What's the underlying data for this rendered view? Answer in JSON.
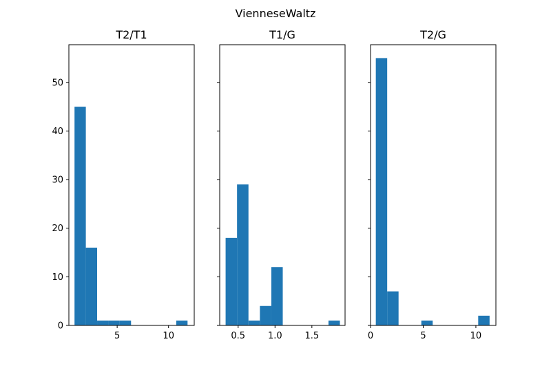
{
  "figure": {
    "suptitle": "VienneseWaltz"
  },
  "colors": {
    "bar": "#1f77b4"
  },
  "chart_data": [
    {
      "type": "bar",
      "title": "T2/T1",
      "xlim": [
        0.3,
        12.5
      ],
      "ylim": [
        0,
        57.75
      ],
      "xticks": [
        {
          "value": 5,
          "label": "5"
        },
        {
          "value": 10,
          "label": "10"
        }
      ],
      "yticks": [
        {
          "value": 0,
          "label": "0"
        },
        {
          "value": 10,
          "label": "10"
        },
        {
          "value": 20,
          "label": "20"
        },
        {
          "value": 30,
          "label": "30"
        },
        {
          "value": 40,
          "label": "40"
        },
        {
          "value": 50,
          "label": "50"
        }
      ],
      "bin_edges": [
        0.85,
        1.95,
        3.05,
        4.15,
        5.25,
        6.35,
        7.45,
        8.55,
        9.65,
        10.75,
        11.85
      ],
      "values": [
        45,
        16,
        1,
        1,
        1,
        0,
        0,
        0,
        0,
        1
      ]
    },
    {
      "type": "bar",
      "title": "T1/G",
      "xlim": [
        0.25,
        1.95
      ],
      "ylim": [
        0,
        57.75
      ],
      "xticks": [
        {
          "value": 0.5,
          "label": "0.5"
        },
        {
          "value": 1.0,
          "label": "1.0"
        },
        {
          "value": 1.5,
          "label": "1.5"
        }
      ],
      "yticks": [
        {
          "value": 0
        },
        {
          "value": 10
        },
        {
          "value": 20
        },
        {
          "value": 30
        },
        {
          "value": 40
        },
        {
          "value": 50
        }
      ],
      "bin_edges": [
        0.33,
        0.485,
        0.64,
        0.795,
        0.95,
        1.105,
        1.26,
        1.415,
        1.57,
        1.725,
        1.88
      ],
      "values": [
        18,
        29,
        1,
        4,
        12,
        0,
        0,
        0,
        0,
        1
      ]
    },
    {
      "type": "bar",
      "title": "T2/G",
      "xlim": [
        0,
        11.9
      ],
      "ylim": [
        0,
        57.75
      ],
      "xticks": [
        {
          "value": 0,
          "label": "0"
        },
        {
          "value": 5,
          "label": "5"
        },
        {
          "value": 10,
          "label": "10"
        }
      ],
      "yticks": [
        {
          "value": 0
        },
        {
          "value": 10
        },
        {
          "value": 20
        },
        {
          "value": 30
        },
        {
          "value": 40
        },
        {
          "value": 50
        }
      ],
      "bin_edges": [
        0.5,
        1.58,
        2.66,
        3.74,
        4.82,
        5.9,
        6.98,
        8.06,
        9.14,
        10.22,
        11.3
      ],
      "values": [
        55,
        7,
        0,
        0,
        1,
        0,
        0,
        0,
        0,
        2
      ]
    }
  ]
}
